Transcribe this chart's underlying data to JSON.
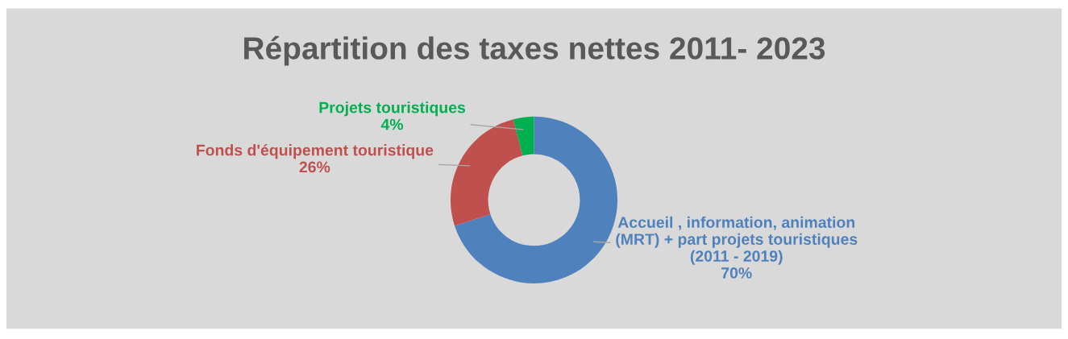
{
  "chart_data": {
    "type": "donut",
    "title": "Répartition des taxes nettes 2011- 2023",
    "categories": [
      "Accueil , information, animation\n(MRT) + part projets touristiques\n(2011 - 2019)",
      "Fonds d'équipement touristique",
      "Projets touristiques"
    ],
    "values": [
      70,
      26,
      4
    ],
    "colors": [
      "#4f81bd",
      "#c0504d",
      "#00b050"
    ],
    "value_labels": [
      "70%",
      "26%",
      "4%"
    ],
    "legend": false
  }
}
